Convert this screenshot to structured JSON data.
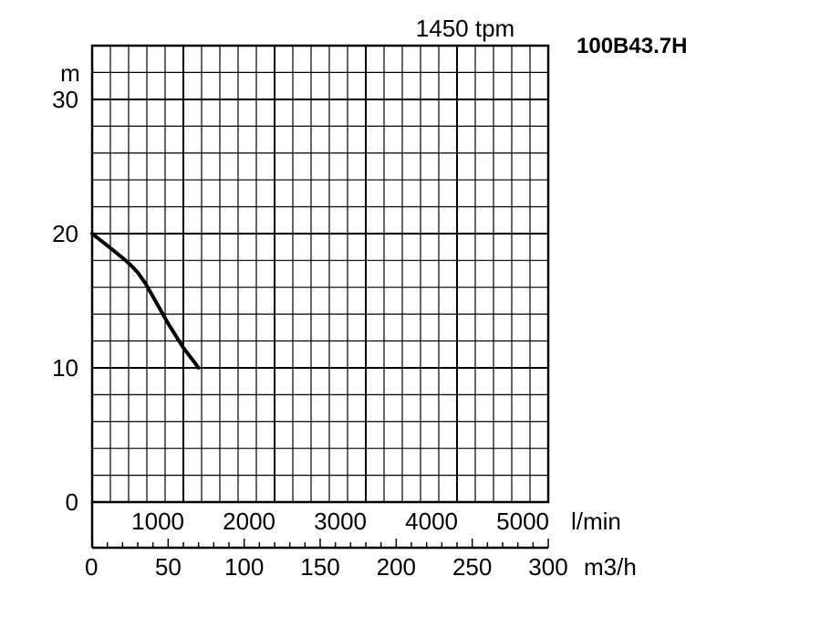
{
  "chart_data": {
    "type": "line",
    "title": "1450 tpm",
    "model": "100B43.7H",
    "ylabel": "m",
    "ylim": [
      0,
      34
    ],
    "yticks": [
      "0",
      "10",
      "20",
      "30"
    ],
    "x_primary": {
      "unit": "l/min",
      "range": [
        0,
        5000
      ],
      "ticks": [
        "1000",
        "2000",
        "3000",
        "4000",
        "5000"
      ]
    },
    "x_secondary": {
      "unit": "m3/h",
      "range": [
        0,
        300
      ],
      "ticks": [
        "0",
        "50",
        "100",
        "150",
        "200",
        "250",
        "300"
      ]
    },
    "grid": true,
    "series": [
      {
        "x": [
          0,
          10,
          20,
          25,
          30,
          35,
          40,
          50,
          60,
          70
        ],
        "y": [
          20,
          19.1,
          18.2,
          17.7,
          17.1,
          16.3,
          15.3,
          13.3,
          11.5,
          10
        ],
        "color": "#000000"
      }
    ]
  }
}
